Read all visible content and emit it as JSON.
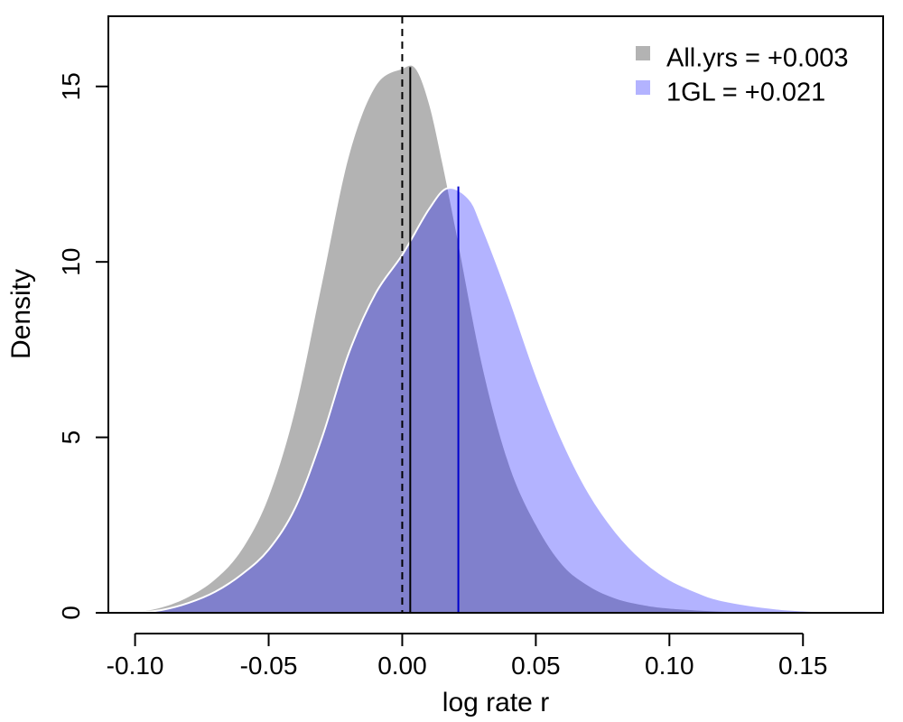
{
  "chart_data": {
    "type": "area",
    "title": "",
    "xlabel": "log rate r",
    "ylabel": "Density",
    "xlim": [
      -0.11,
      0.18
    ],
    "ylim": [
      0,
      17
    ],
    "x_ticks": [
      -0.1,
      -0.05,
      0.0,
      0.05,
      0.1,
      0.15
    ],
    "x_tick_labels": [
      "-0.10",
      "-0.05",
      "0.00",
      "0.05",
      "0.10",
      "0.15"
    ],
    "y_ticks": [
      0,
      5,
      10,
      15
    ],
    "y_tick_labels": [
      "0",
      "5",
      "10",
      "15"
    ],
    "legend_position": "top-right",
    "reference_line": {
      "x": 0.0,
      "style": "dashed",
      "color": "#000000"
    },
    "series": [
      {
        "name": "All.yrs",
        "legend_label": "All.yrs = +0.003",
        "mean": 0.003,
        "fill": "#b3b3b3",
        "mean_line_color": "#000000",
        "x": [
          -0.1,
          -0.09,
          -0.08,
          -0.07,
          -0.06,
          -0.05,
          -0.04,
          -0.03,
          -0.02,
          -0.01,
          0.0,
          0.005,
          0.01,
          0.015,
          0.02,
          0.03,
          0.04,
          0.05,
          0.06,
          0.07,
          0.08,
          0.09,
          0.1,
          0.12,
          0.14,
          0.16,
          0.175
        ],
        "y": [
          0.0,
          0.15,
          0.45,
          0.95,
          1.8,
          3.3,
          5.8,
          9.4,
          13.0,
          15.0,
          15.5,
          15.5,
          14.5,
          12.8,
          10.9,
          7.0,
          4.2,
          2.5,
          1.35,
          0.75,
          0.4,
          0.22,
          0.12,
          0.03,
          0.01,
          0.0,
          0.0
        ]
      },
      {
        "name": "1GL",
        "legend_label": "1GL = +0.021",
        "mean": 0.021,
        "fill": "#b3b3ff",
        "overlap_fill": "#8080cc",
        "mean_line_color": "#0000cc",
        "x": [
          -0.1,
          -0.09,
          -0.08,
          -0.07,
          -0.06,
          -0.05,
          -0.04,
          -0.03,
          -0.02,
          -0.01,
          0.0,
          0.01,
          0.017,
          0.025,
          0.03,
          0.04,
          0.05,
          0.06,
          0.07,
          0.08,
          0.09,
          0.1,
          0.11,
          0.12,
          0.14,
          0.16,
          0.175
        ],
        "y": [
          0.0,
          0.08,
          0.28,
          0.6,
          1.1,
          1.8,
          3.0,
          5.0,
          7.4,
          9.1,
          10.2,
          11.5,
          12.1,
          11.8,
          11.0,
          9.0,
          6.8,
          4.9,
          3.4,
          2.3,
          1.5,
          0.95,
          0.6,
          0.35,
          0.12,
          0.03,
          0.0
        ]
      }
    ]
  }
}
